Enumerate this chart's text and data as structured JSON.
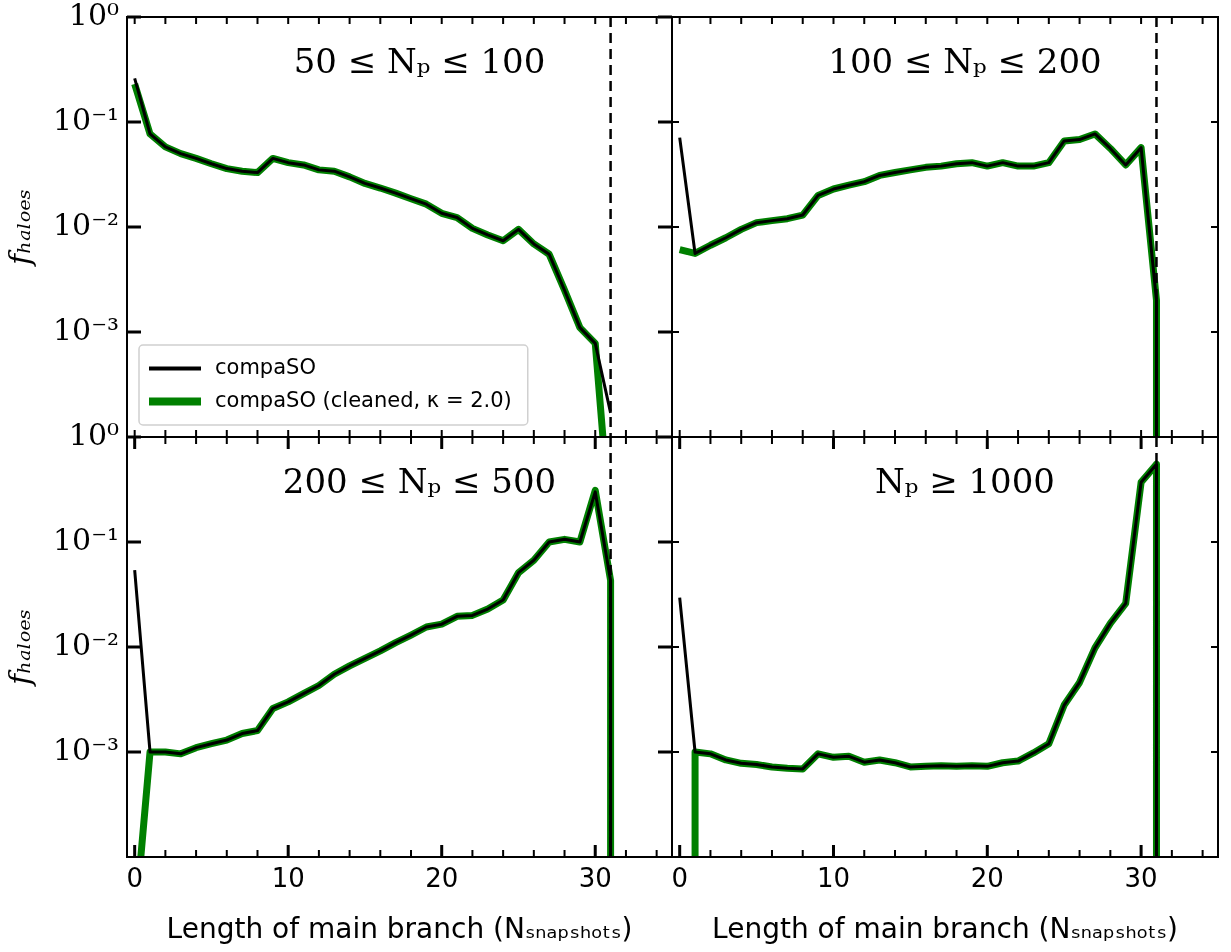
{
  "chart_data": [
    {
      "type": "line",
      "title": "50 ≤ Nₚ ≤ 100",
      "ylabel": "fₕₐₗₒₑₛ",
      "log": "y",
      "tick_labels": "y",
      "legend": "bottom left",
      "x": [
        0,
        1,
        2,
        3,
        4,
        5,
        6,
        7,
        8,
        9,
        10,
        11,
        12,
        13,
        14,
        15,
        16,
        17,
        18,
        19,
        20,
        21,
        22,
        23,
        24,
        25,
        26,
        27,
        28,
        29,
        30,
        31
      ],
      "xlim": [
        -0.5,
        35
      ],
      "ylim": [
        0.0001,
        1
      ],
      "xticks": [
        {
          "value": 0,
          "label": null
        },
        {
          "value": 2,
          "label": null
        },
        {
          "value": 4,
          "label": null
        },
        {
          "value": 6,
          "label": null
        },
        {
          "value": 8,
          "label": null
        },
        {
          "value": 10,
          "label": null
        },
        {
          "value": 12,
          "label": null
        },
        {
          "value": 14,
          "label": null
        },
        {
          "value": 16,
          "label": null
        },
        {
          "value": 18,
          "label": null
        },
        {
          "value": 20,
          "label": null
        },
        {
          "value": 22,
          "label": null
        },
        {
          "value": 24,
          "label": null
        },
        {
          "value": 26,
          "label": null
        },
        {
          "value": 28,
          "label": null
        },
        {
          "value": 30,
          "label": null
        },
        {
          "value": 32,
          "label": null
        },
        {
          "value": 34,
          "label": null
        }
      ],
      "yticks": [
        {
          "value": 0.0001,
          "label": null
        },
        {
          "value": 0.001,
          "label": "10⁻³"
        },
        {
          "value": 0.01,
          "label": "10⁻²"
        },
        {
          "value": 0.1,
          "label": "10⁻¹"
        },
        {
          "value": 1,
          "label": "10⁰"
        }
      ],
      "ref_lines": [
        {
          "axis": "x",
          "value": 31,
          "color": "#000000",
          "line_style": "dashed"
        }
      ],
      "series": [
        {
          "name": "compaSO",
          "color": "#000000",
          "values": [
            0.26,
            0.077,
            0.058,
            0.05,
            0.045,
            0.04,
            0.036,
            0.034,
            0.033,
            0.045,
            0.041,
            0.039,
            0.035,
            0.034,
            0.03,
            0.026,
            0.0235,
            0.021,
            0.0186,
            0.0165,
            0.0135,
            0.0123,
            0.0097,
            0.0084,
            0.0074,
            0.0095,
            0.0069,
            0.0055,
            0.0025,
            0.0011,
            0.00078,
            0.00017
          ]
        },
        {
          "name": "compaSO (cleaned, κ = 2.0)",
          "color": "#008000",
          "x": [
            0,
            1,
            2,
            3,
            4,
            5,
            6,
            7,
            8,
            9,
            10,
            11,
            12,
            13,
            14,
            15,
            16,
            17,
            18,
            19,
            20,
            21,
            22,
            23,
            24,
            25,
            26,
            27,
            28,
            29,
            30,
            30.5
          ],
          "values": [
            0.23,
            0.077,
            0.058,
            0.05,
            0.045,
            0.04,
            0.036,
            0.034,
            0.033,
            0.045,
            0.041,
            0.039,
            0.035,
            0.034,
            0.03,
            0.026,
            0.0235,
            0.021,
            0.0186,
            0.0165,
            0.0135,
            0.0123,
            0.0097,
            0.0084,
            0.0074,
            0.0095,
            0.0069,
            0.0055,
            0.0025,
            0.0011,
            0.00078,
            0.0001
          ]
        }
      ]
    },
    {
      "type": "line",
      "title": "100 ≤ Nₚ ≤ 200",
      "log": "y",
      "tick_labels": false,
      "x": [
        0,
        1,
        2,
        3,
        4,
        5,
        6,
        7,
        8,
        9,
        10,
        11,
        12,
        13,
        14,
        15,
        16,
        17,
        18,
        19,
        20,
        21,
        22,
        23,
        24,
        25,
        26,
        27,
        28,
        29,
        30,
        31,
        31
      ],
      "xlim": [
        -0.5,
        35
      ],
      "ylim": [
        0.0001,
        1
      ],
      "xticks": [
        {
          "value": 0,
          "label": null
        },
        {
          "value": 2,
          "label": null
        },
        {
          "value": 4,
          "label": null
        },
        {
          "value": 6,
          "label": null
        },
        {
          "value": 8,
          "label": null
        },
        {
          "value": 10,
          "label": null
        },
        {
          "value": 12,
          "label": null
        },
        {
          "value": 14,
          "label": null
        },
        {
          "value": 16,
          "label": null
        },
        {
          "value": 18,
          "label": null
        },
        {
          "value": 20,
          "label": null
        },
        {
          "value": 22,
          "label": null
        },
        {
          "value": 24,
          "label": null
        },
        {
          "value": 26,
          "label": null
        },
        {
          "value": 28,
          "label": null
        },
        {
          "value": 30,
          "label": null
        },
        {
          "value": 32,
          "label": null
        },
        {
          "value": 34,
          "label": null
        }
      ],
      "yticks": [
        {
          "value": 0.0001,
          "label": null
        },
        {
          "value": 0.001,
          "label": null
        },
        {
          "value": 0.01,
          "label": null
        },
        {
          "value": 0.1,
          "label": null
        },
        {
          "value": 1,
          "label": null
        }
      ],
      "ref_lines": [
        {
          "axis": "x",
          "value": 31,
          "color": "#000000",
          "line_style": "dashed"
        }
      ],
      "series": [
        {
          "color": "#000000",
          "values": [
            0.071,
            0.0056,
            0.0067,
            0.0079,
            0.0095,
            0.011,
            0.0115,
            0.012,
            0.013,
            0.02,
            0.023,
            0.025,
            0.027,
            0.031,
            0.033,
            0.035,
            0.037,
            0.038,
            0.04,
            0.041,
            0.038,
            0.041,
            0.038,
            0.038,
            0.041,
            0.066,
            0.068,
            0.077,
            0.056,
            0.039,
            0.057,
            0.002,
            0.0001
          ]
        },
        {
          "color": "#008000",
          "values": [
            0.0061,
            0.0056,
            0.0067,
            0.0079,
            0.0095,
            0.011,
            0.0115,
            0.012,
            0.013,
            0.02,
            0.023,
            0.025,
            0.027,
            0.031,
            0.033,
            0.035,
            0.037,
            0.038,
            0.04,
            0.041,
            0.038,
            0.041,
            0.038,
            0.038,
            0.041,
            0.066,
            0.068,
            0.077,
            0.056,
            0.039,
            0.057,
            0.002,
            0.0001
          ]
        }
      ]
    },
    {
      "type": "line",
      "title": "200 ≤ Nₚ ≤ 500",
      "xlabel": "Length of main branch (Nₛₙₐₚₛₕₒₜₛ)",
      "ylabel": "fₕₐₗₒₑₛ",
      "log": "y",
      "x": [
        0,
        1,
        2,
        3,
        4,
        5,
        6,
        7,
        8,
        9,
        10,
        11,
        12,
        13,
        14,
        15,
        16,
        17,
        18,
        19,
        20,
        21,
        22,
        23,
        24,
        25,
        26,
        27,
        28,
        29,
        30,
        31,
        31
      ],
      "xlim": [
        -0.5,
        35
      ],
      "ylim": [
        0.0001,
        1
      ],
      "xticks": [
        0,
        {
          "value": 2,
          "label": null
        },
        {
          "value": 4,
          "label": null
        },
        {
          "value": 6,
          "label": null
        },
        {
          "value": 8,
          "label": null
        },
        10,
        {
          "value": 12,
          "label": null
        },
        {
          "value": 14,
          "label": null
        },
        {
          "value": 16,
          "label": null
        },
        {
          "value": 18,
          "label": null
        },
        20,
        {
          "value": 22,
          "label": null
        },
        {
          "value": 24,
          "label": null
        },
        {
          "value": 26,
          "label": null
        },
        {
          "value": 28,
          "label": null
        },
        30,
        {
          "value": 32,
          "label": null
        },
        {
          "value": 34,
          "label": null
        }
      ],
      "yticks": [
        {
          "value": 0.0001,
          "label": null
        },
        {
          "value": 0.001,
          "label": "10⁻³"
        },
        {
          "value": 0.01,
          "label": "10⁻²"
        },
        {
          "value": 0.1,
          "label": "10⁻¹"
        },
        {
          "value": 1,
          "label": "10⁰"
        }
      ],
      "ref_lines": [
        {
          "axis": "x",
          "value": 31,
          "color": "#000000",
          "line_style": "dashed"
        }
      ],
      "series": [
        {
          "color": "#000000",
          "values": [
            0.054,
            0.001,
            0.001,
            0.00096,
            0.0011,
            0.0012,
            0.0013,
            0.0015,
            0.0016,
            0.0026,
            0.003,
            0.0036,
            0.0043,
            0.0055,
            0.0066,
            0.0078,
            0.0092,
            0.011,
            0.013,
            0.0155,
            0.0165,
            0.0196,
            0.02,
            0.023,
            0.028,
            0.051,
            0.067,
            0.1,
            0.106,
            0.1,
            0.3,
            0.043,
            0.0001
          ]
        },
        {
          "color": "#008000",
          "x": [
            0.4,
            1,
            2,
            3,
            4,
            5,
            6,
            7,
            8,
            9,
            10,
            11,
            12,
            13,
            14,
            15,
            16,
            17,
            18,
            19,
            20,
            21,
            22,
            23,
            24,
            25,
            26,
            27,
            28,
            29,
            30,
            31,
            31
          ],
          "values": [
            0.0001,
            0.001,
            0.001,
            0.00096,
            0.0011,
            0.0012,
            0.0013,
            0.0015,
            0.0016,
            0.0026,
            0.003,
            0.0036,
            0.0043,
            0.0055,
            0.0066,
            0.0078,
            0.0092,
            0.011,
            0.013,
            0.0155,
            0.0165,
            0.0196,
            0.02,
            0.023,
            0.028,
            0.051,
            0.067,
            0.1,
            0.106,
            0.1,
            0.31,
            0.043,
            0.0001
          ]
        }
      ]
    },
    {
      "type": "line",
      "title": "Nₚ ≥ 1000",
      "xlabel": "Length of main branch (Nₛₙₐₚₛₕₒₜₛ)",
      "log": "y",
      "tick_labels": "x",
      "x": [
        0,
        1,
        2,
        3,
        4,
        5,
        6,
        7,
        8,
        9,
        10,
        11,
        12,
        13,
        14,
        15,
        16,
        17,
        18,
        19,
        20,
        21,
        22,
        23,
        24,
        25,
        26,
        27,
        28,
        29,
        30,
        31,
        31
      ],
      "xlim": [
        -0.5,
        35
      ],
      "ylim": [
        0.0001,
        1
      ],
      "xticks": [
        0,
        {
          "value": 2,
          "label": null
        },
        {
          "value": 4,
          "label": null
        },
        {
          "value": 6,
          "label": null
        },
        {
          "value": 8,
          "label": null
        },
        10,
        {
          "value": 12,
          "label": null
        },
        {
          "value": 14,
          "label": null
        },
        {
          "value": 16,
          "label": null
        },
        {
          "value": 18,
          "label": null
        },
        20,
        {
          "value": 22,
          "label": null
        },
        {
          "value": 24,
          "label": null
        },
        {
          "value": 26,
          "label": null
        },
        {
          "value": 28,
          "label": null
        },
        30,
        {
          "value": 32,
          "label": null
        },
        {
          "value": 34,
          "label": null
        }
      ],
      "yticks": [
        {
          "value": 0.0001,
          "label": null
        },
        {
          "value": 0.001,
          "label": null
        },
        {
          "value": 0.01,
          "label": null
        },
        {
          "value": 0.1,
          "label": null
        },
        {
          "value": 1,
          "label": null
        }
      ],
      "ref_lines": [
        {
          "axis": "x",
          "value": 31,
          "color": "#000000",
          "line_style": "dashed"
        }
      ],
      "series": [
        {
          "color": "#000000",
          "values": [
            0.0295,
            0.001,
            0.00096,
            0.00084,
            0.00078,
            0.00076,
            0.00072,
            0.0007,
            0.00069,
            0.00096,
            0.00089,
            0.00091,
            0.0008,
            0.00084,
            0.00079,
            0.00072,
            0.00073,
            0.00074,
            0.00073,
            0.00074,
            0.00073,
            0.00079,
            0.00082,
            0.00098,
            0.0012,
            0.0028,
            0.0046,
            0.0098,
            0.0168,
            0.026,
            0.37,
            0.55,
            0.0001
          ]
        },
        {
          "color": "#008000",
          "x": [
            1,
            1,
            2,
            3,
            4,
            5,
            6,
            7,
            8,
            9,
            10,
            11,
            12,
            13,
            14,
            15,
            16,
            17,
            18,
            19,
            20,
            21,
            22,
            23,
            24,
            25,
            26,
            27,
            28,
            29,
            30,
            31,
            31
          ],
          "values": [
            0.0001,
            0.001,
            0.00096,
            0.00084,
            0.00078,
            0.00076,
            0.00072,
            0.0007,
            0.00069,
            0.00096,
            0.00089,
            0.00091,
            0.0008,
            0.00084,
            0.00079,
            0.00072,
            0.00073,
            0.00074,
            0.00073,
            0.00074,
            0.00073,
            0.00079,
            0.00082,
            0.00098,
            0.0012,
            0.0028,
            0.0046,
            0.0098,
            0.0168,
            0.026,
            0.37,
            0.55,
            0.0001
          ]
        }
      ]
    }
  ]
}
